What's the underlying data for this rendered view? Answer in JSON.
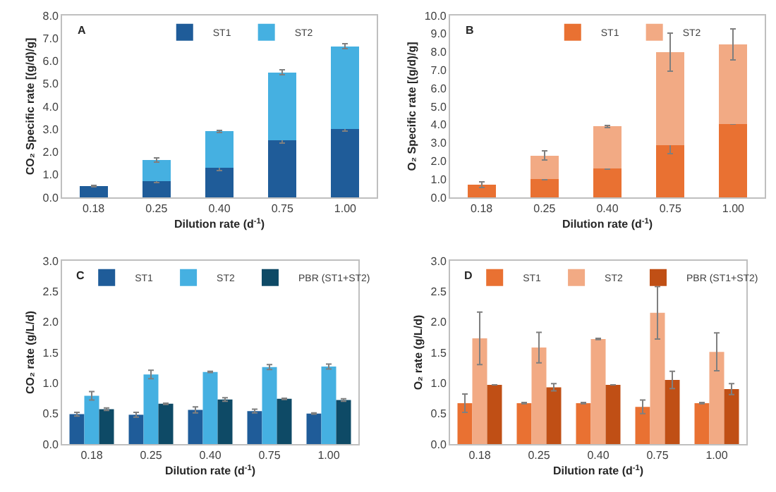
{
  "chart_data": [
    {
      "type": "bar",
      "stacked": true,
      "annotations": [
        "A"
      ],
      "xlabel": "Dilution rate (d$^{-1}$)",
      "ylabel": "CO₂ Specific rate [(g/d)/g]",
      "categories": [
        "0.18",
        "0.25",
        "0.40",
        "0.75",
        "1.00"
      ],
      "ylim": [
        0,
        8
      ],
      "yticks": [
        {
          "value": 0,
          "label": "0.0"
        },
        {
          "value": 1,
          "label": "1.0"
        },
        {
          "value": 2,
          "label": "2.0"
        },
        {
          "value": 3,
          "label": "3.0"
        },
        {
          "value": 4,
          "label": "4.0"
        },
        {
          "value": 5,
          "label": "5.0"
        },
        {
          "value": 6,
          "label": "6.0"
        },
        {
          "value": 7,
          "label": "7.0"
        },
        {
          "value": 8,
          "label": "8.0"
        }
      ],
      "legend": "top",
      "grid": false,
      "series": [
        {
          "name": "ST1",
          "color": "#1f5c99",
          "values": [
            0.5,
            0.7,
            1.3,
            2.5,
            3.0
          ],
          "errors": [
            0.03,
            0.05,
            0.12,
            0.12,
            0.1
          ]
        },
        {
          "name": "ST2",
          "color": "#45b0e1",
          "values": [
            null,
            0.95,
            1.6,
            3.0,
            3.65
          ],
          "errors": [
            null,
            0.1,
            0.05,
            0.1,
            0.12
          ]
        }
      ]
    },
    {
      "type": "bar",
      "stacked": true,
      "annotations": [
        "B"
      ],
      "xlabel": "Dilution rate (d$^{-1}$)",
      "ylabel": "O₂ Specific rate [(g/d)/g]",
      "categories": [
        "0.18",
        "0.25",
        "0.40",
        "0.75",
        "1.00"
      ],
      "ylim": [
        0,
        10
      ],
      "yticks": [
        {
          "value": 0,
          "label": "0.0"
        },
        {
          "value": 1,
          "label": "1.0"
        },
        {
          "value": 2,
          "label": "2.0"
        },
        {
          "value": 3,
          "label": "3.0"
        },
        {
          "value": 4,
          "label": "4.0"
        },
        {
          "value": 5,
          "label": "5.0"
        },
        {
          "value": 6,
          "label": "6.0"
        },
        {
          "value": 7,
          "label": "7.0"
        },
        {
          "value": 8,
          "label": "8.0"
        },
        {
          "value": 9,
          "label": "9.0"
        },
        {
          "value": 10,
          "label": "10.0"
        }
      ],
      "legend": "top",
      "grid": false,
      "series": [
        {
          "name": "ST1",
          "color": "#e97132",
          "values": [
            0.7,
            1.0,
            1.6,
            2.85,
            4.05
          ],
          "errors": [
            0.15,
            0.03,
            0.03,
            0.45,
            0.03
          ]
        },
        {
          "name": "ST2",
          "color": "#f2aa84",
          "values": [
            null,
            1.3,
            2.3,
            5.15,
            4.35
          ],
          "errors": [
            null,
            0.25,
            0.07,
            1.05,
            0.85
          ]
        }
      ]
    },
    {
      "type": "bar",
      "annotations": [
        "C"
      ],
      "xlabel": "Dilution rate (d$^{-1}$)",
      "ylabel": "CO₂ rate (g/L/d)",
      "categories": [
        "0.18",
        "0.25",
        "0.40",
        "0.75",
        "1.00"
      ],
      "ylim": [
        0,
        3
      ],
      "yticks": [
        {
          "value": 0,
          "label": "0.0"
        },
        {
          "value": 0.5,
          "label": "0.5"
        },
        {
          "value": 1,
          "label": "1.0"
        },
        {
          "value": 1.5,
          "label": "1.5"
        },
        {
          "value": 2,
          "label": "2.0"
        },
        {
          "value": 2.5,
          "label": "2.5"
        },
        {
          "value": 3,
          "label": "3.0"
        }
      ],
      "legend": "top",
      "grid": false,
      "series": [
        {
          "name": "ST1",
          "color": "#1f5c99",
          "values": [
            0.49,
            0.48,
            0.56,
            0.54,
            0.5
          ],
          "errors": [
            0.03,
            0.04,
            0.05,
            0.03,
            0.01
          ]
        },
        {
          "name": "ST2",
          "color": "#45b0e1",
          "values": [
            0.79,
            1.14,
            1.18,
            1.26,
            1.27
          ],
          "errors": [
            0.07,
            0.07,
            0.01,
            0.04,
            0.04
          ]
        },
        {
          "name": "PBR (ST1+ST2)",
          "color": "#0e4a66",
          "values": [
            0.57,
            0.66,
            0.73,
            0.74,
            0.72
          ],
          "errors": [
            0.02,
            0.01,
            0.03,
            0.01,
            0.02
          ]
        }
      ]
    },
    {
      "type": "bar",
      "annotations": [
        "D"
      ],
      "xlabel": "Dilution rate (d$^{-1}$)",
      "ylabel": "O₂ rate (g/L/d)",
      "categories": [
        "0.18",
        "0.25",
        "0.40",
        "0.75",
        "1.00"
      ],
      "ylim": [
        0,
        3
      ],
      "yticks": [
        {
          "value": 0,
          "label": "0.0"
        },
        {
          "value": 0.5,
          "label": "0.5"
        },
        {
          "value": 1,
          "label": "1.0"
        },
        {
          "value": 1.5,
          "label": "1.5"
        },
        {
          "value": 2,
          "label": "2.0"
        },
        {
          "value": 2.5,
          "label": "2.5"
        },
        {
          "value": 3,
          "label": "3.0"
        }
      ],
      "legend": "top",
      "grid": false,
      "series": [
        {
          "name": "ST1",
          "color": "#e97132",
          "values": [
            0.67,
            0.67,
            0.67,
            0.61,
            0.67
          ],
          "errors": [
            0.15,
            0.01,
            0.01,
            0.11,
            0.01
          ]
        },
        {
          "name": "ST2",
          "color": "#f2aa84",
          "values": [
            1.73,
            1.58,
            1.72,
            2.15,
            1.51
          ],
          "errors": [
            0.43,
            0.25,
            0.01,
            0.43,
            0.31
          ]
        },
        {
          "name": "PBR (ST1+ST2)",
          "color": "#c04f15",
          "values": [
            0.97,
            0.93,
            0.97,
            1.05,
            0.9
          ],
          "errors": [
            null,
            0.06,
            null,
            0.14,
            0.09
          ]
        }
      ]
    }
  ]
}
